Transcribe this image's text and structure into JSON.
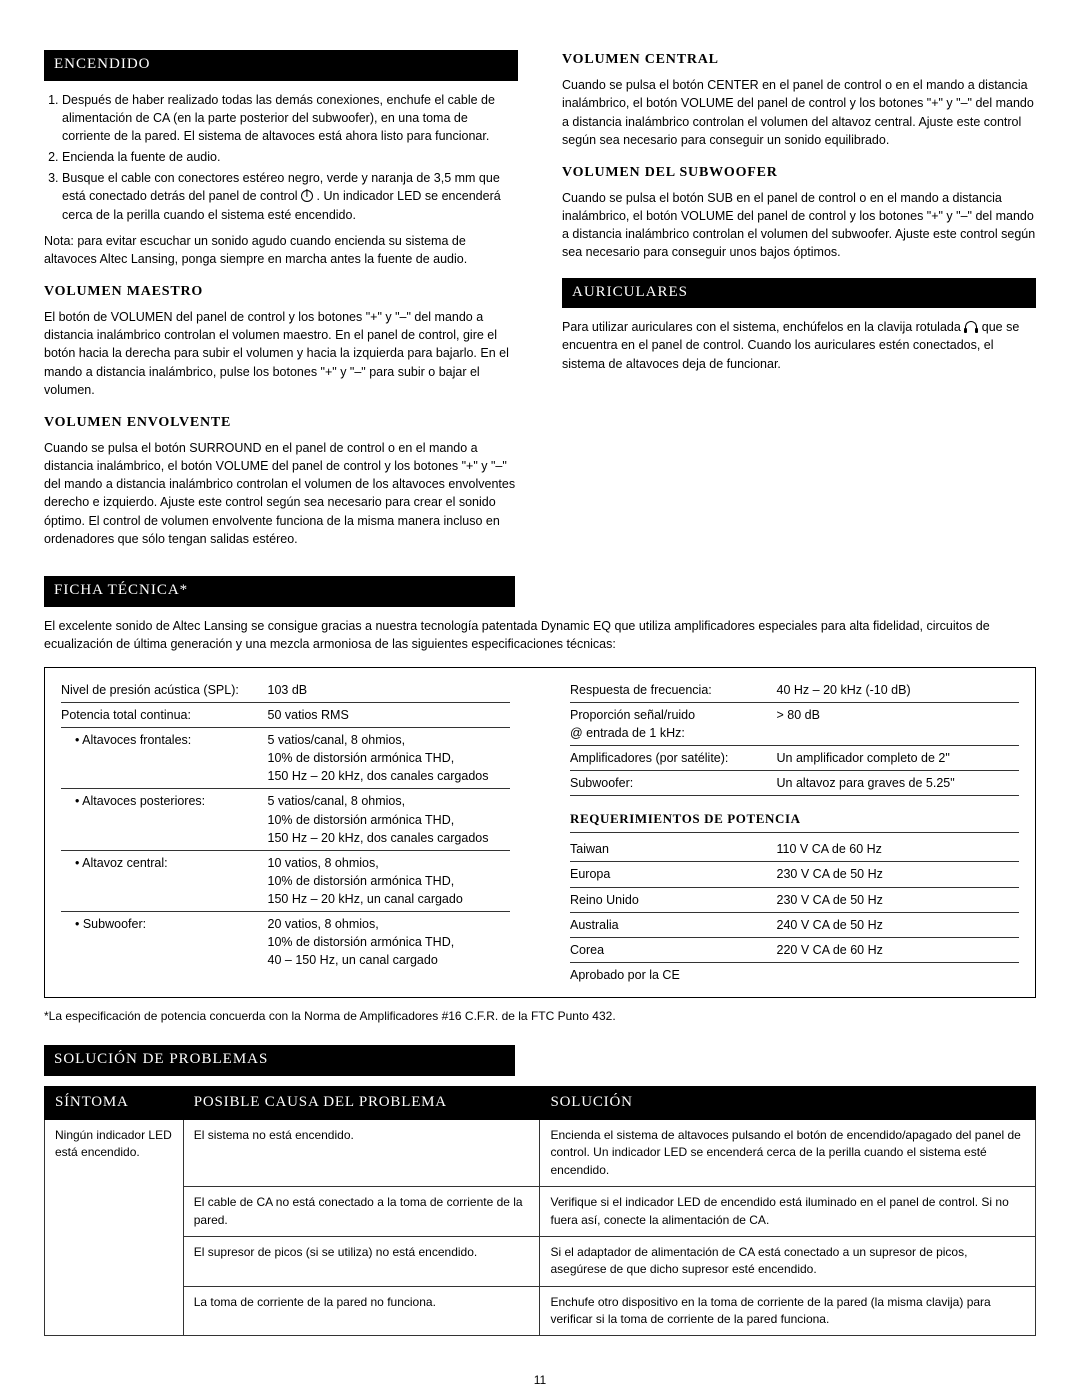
{
  "page_number": "11",
  "colors": {
    "black": "#000000",
    "white": "#ffffff"
  },
  "left": {
    "encendido_title": "ENCENDIDO",
    "step1": "Después de haber realizado todas las demás conexiones, enchufe el cable de alimentación de CA (en la parte posterior del subwoofer), en una toma de corriente de la pared. El sistema de altavoces está ahora listo para funcionar.",
    "step2": "Encienda la fuente de audio.",
    "step3a": "Busque el cable con conectores estéreo negro, verde y naranja de 3,5 mm que está conectado detrás del panel de control ",
    "step3b": " . Un indicador LED se encenderá cerca de la perilla cuando el sistema esté encendido.",
    "nota": "Nota: para evitar escuchar un sonido agudo cuando encienda su sistema de altavoces Altec Lansing, ponga siempre en marcha antes la fuente de audio.",
    "vol_maestro_title": "VOLUMEN MAESTRO",
    "vol_maestro_text": "El botón de VOLUMEN del panel de control y los botones \"+\" y \"–\" del mando a distancia inalámbrico controlan el volumen maestro. En el panel de control, gire el botón hacia la derecha para subir el volumen y hacia la izquierda para bajarlo. En el mando a distancia inalámbrico, pulse los botones \"+\" y \"–\" para subir o bajar el volumen.",
    "vol_env_title": "VOLUMEN ENVOLVENTE",
    "vol_env_text": "Cuando se pulsa el botón SURROUND en el panel de control o en el mando a distancia inalámbrico, el botón VOLUME del panel de control y los botones \"+\" y \"–\" del mando a distancia inalámbrico controlan el volumen de los altavoces envolventes derecho e izquierdo. Ajuste este control según sea necesario para crear el sonido óptimo. El control de volumen envolvente funciona de la misma manera incluso en ordenadores que sólo tengan salidas estéreo."
  },
  "right": {
    "vol_central_title": "VOLUMEN CENTRAL",
    "vol_central_text": "Cuando se pulsa el botón CENTER en el panel de control o en el mando a distancia inalámbrico, el botón VOLUME del panel de control y los botones \"+\" y \"–\" del mando a distancia inalámbrico controlan el volumen del altavoz central. Ajuste este control según sea necesario para conseguir un sonido equilibrado.",
    "vol_sub_title": "VOLUMEN DEL SUBWOOFER",
    "vol_sub_text": "Cuando se pulsa el botón SUB en el panel de control o en el mando a distancia inalámbrico, el botón VOLUME del panel de control y los botones \"+\" y \"–\" del mando a distancia inalámbrico controlan el volumen del subwoofer. Ajuste este control según sea necesario para conseguir unos bajos óptimos.",
    "auriculares_title": "AURICULARES",
    "auriculares_text_a": "Para utilizar auriculares con el sistema, enchúfelos en la clavija rotulada ",
    "auriculares_text_b": " que se encuentra en el panel de control. Cuando los auriculares estén conectados, el sistema de altavoces deja de funcionar."
  },
  "ficha": {
    "title": "FICHA TÉCNICA*",
    "intro": "El excelente sonido de Altec Lansing se consigue gracias a nuestra tecnología patentada Dynamic EQ que utiliza amplificadores especiales para alta fidelidad, circuitos de ecualización de última generación y una mezcla armoniosa de las siguientes especificaciones técnicas:",
    "left_rows": [
      {
        "label": "Nivel de presión acústica (SPL):",
        "value": "103 dB"
      },
      {
        "label": "Potencia total continua:",
        "value": "50 vatios RMS"
      }
    ],
    "sub_rows": [
      {
        "label": "• Altavoces frontales:",
        "value": "5 vatios/canal, 8 ohmios,\n10% de distorsión armónica THD,\n150 Hz – 20 kHz, dos canales cargados"
      },
      {
        "label": "• Altavoces posteriores:",
        "value": "5 vatios/canal, 8 ohmios,\n10% de distorsión armónica THD,\n150 Hz – 20 kHz, dos canales cargados"
      },
      {
        "label": "• Altavoz central:",
        "value": "10 vatios, 8 ohmios,\n10% de distorsión armónica THD,\n150 Hz – 20 kHz, un canal cargado"
      },
      {
        "label": "• Subwoofer:",
        "value": "20 vatios, 8 ohmios,\n10% de distorsión armónica THD,\n40 – 150 Hz, un canal cargado"
      }
    ],
    "right_rows": [
      {
        "label": "Respuesta de frecuencia:",
        "value": "40 Hz – 20 kHz (-10 dB)"
      },
      {
        "label": "Proporción señal/ruido\n@ entrada de 1 kHz:",
        "value": "> 80 dB"
      },
      {
        "label": "Amplificadores (por satélite):",
        "value": "Un amplificador completo de 2\""
      },
      {
        "label": "Subwoofer:",
        "value": "Un altavoz para graves de 5.25\""
      }
    ],
    "req_title": "REQUERIMIENTOS DE POTENCIA",
    "req_rows": [
      {
        "label": "Taiwan",
        "value": "110 V CA de 60 Hz"
      },
      {
        "label": "Europa",
        "value": "230 V CA de 50 Hz"
      },
      {
        "label": "Reino Unido",
        "value": "230 V CA de 50 Hz"
      },
      {
        "label": "Australia",
        "value": "240 V CA de 50 Hz"
      },
      {
        "label": "Corea",
        "value": "220 V CA de 60 Hz"
      },
      {
        "label": "Aprobado por la CE",
        "value": ""
      }
    ],
    "footnote": "*La especificación de potencia concuerda con la Norma de Amplificadores #16 C.F.R. de la FTC Punto 432."
  },
  "solucion": {
    "title": "SOLUCIÓN DE PROBLEMAS",
    "headers": [
      "SÍNTOMA",
      "POSIBLE CAUSA DEL PROBLEMA",
      "SOLUCIÓN"
    ],
    "symptom": "Ningún indicador LED está encendido.",
    "rows": [
      {
        "cause": "El sistema no está encendido.",
        "fix": "Encienda el sistema de altavoces pulsando el botón de encendido/apagado del panel de control. Un indicador LED se encenderá cerca de la perilla cuando el sistema esté encendido."
      },
      {
        "cause": "El cable de CA no está conectado a la toma de corriente de la pared.",
        "fix": "Verifique si el indicador LED de encendido está iluminado en el panel de control. Si no fuera así, conecte la alimentación de CA."
      },
      {
        "cause": "El supresor de picos (si se utiliza) no está encendido.",
        "fix": "Si el adaptador de alimentación de CA está conectado a un supresor de picos, asegúrese de que dicho supresor esté encendido."
      },
      {
        "cause": "La toma de corriente de la pared no funciona.",
        "fix": "Enchufe otro dispositivo en la toma de corriente de la pared (la misma clavija) para verificar si la toma de corriente de la pared funciona."
      }
    ]
  }
}
